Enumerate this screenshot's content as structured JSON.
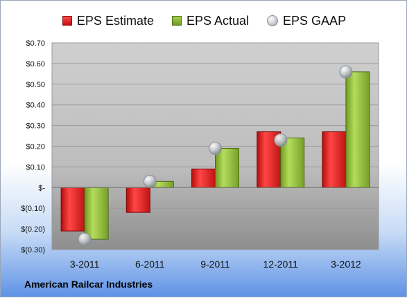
{
  "chart_data": {
    "type": "bar",
    "categories": [
      "3-2011",
      "6-2011",
      "9-2011",
      "12-2011",
      "3-2012"
    ],
    "series": [
      {
        "name": "EPS Estimate",
        "values": [
          -0.21,
          -0.12,
          0.09,
          0.27,
          0.27
        ],
        "color": "#d91c1c"
      },
      {
        "name": "EPS Actual",
        "values": [
          -0.25,
          0.03,
          0.19,
          0.24,
          0.56
        ],
        "color": "#8cb83a"
      },
      {
        "name": "EPS GAAP",
        "values": [
          -0.25,
          0.03,
          0.19,
          0.23,
          0.56
        ],
        "color": "#b8bcc2",
        "marker": "sphere"
      }
    ],
    "ylim": [
      -0.3,
      0.7
    ],
    "yticks": [
      {
        "value": 0.7,
        "label": "$0.70"
      },
      {
        "value": 0.6,
        "label": "$0.60"
      },
      {
        "value": 0.5,
        "label": "$0.50"
      },
      {
        "value": 0.4,
        "label": "$0.40"
      },
      {
        "value": 0.3,
        "label": "$0.30"
      },
      {
        "value": 0.2,
        "label": "$0.20"
      },
      {
        "value": 0.1,
        "label": "$0.10"
      },
      {
        "value": 0.0,
        "label": "$-"
      },
      {
        "value": -0.1,
        "label": "$(0.10)"
      },
      {
        "value": -0.2,
        "label": "$(0.20)"
      },
      {
        "value": -0.3,
        "label": "$(0.30)"
      }
    ],
    "grid": true,
    "legend_position": "top"
  },
  "footer_label": "American Railcar Industries"
}
